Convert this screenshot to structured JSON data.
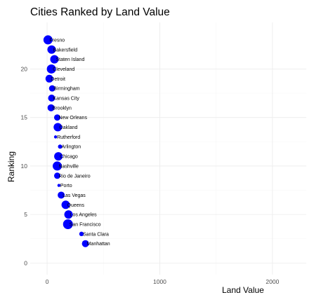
{
  "chart_data": {
    "type": "scatter",
    "title": "Cities Ranked by Land Value",
    "xlabel": "Land Value",
    "ylabel": "Ranking",
    "xlim": [
      -150,
      2300
    ],
    "ylim": [
      -1.2,
      24.8
    ],
    "x_ticks": [
      0,
      1000,
      2000
    ],
    "y_ticks": [
      0,
      5,
      10,
      15,
      20
    ],
    "grid": true,
    "legend": "none",
    "point_color": "#0000ff",
    "points": [
      {
        "label": "Fresno",
        "x": 8,
        "rank": 23,
        "size": 6.5
      },
      {
        "label": "Bakersfield",
        "x": 40,
        "rank": 22,
        "size": 6
      },
      {
        "label": "Staten Island",
        "x": 65,
        "rank": 21,
        "size": 6
      },
      {
        "label": "Cleveland",
        "x": 38,
        "rank": 20,
        "size": 6.5
      },
      {
        "label": "Detroit",
        "x": 20,
        "rank": 19,
        "size": 5.5
      },
      {
        "label": "Birmingham",
        "x": 45,
        "rank": 18,
        "size": 4.5
      },
      {
        "label": "Kansas City",
        "x": 40,
        "rank": 17,
        "size": 5
      },
      {
        "label": "Brooklyn",
        "x": 35,
        "rank": 16,
        "size": 5
      },
      {
        "label": "New Orleans",
        "x": 90,
        "rank": 15,
        "size": 4.5
      },
      {
        "label": "Oakland",
        "x": 95,
        "rank": 14,
        "size": 6
      },
      {
        "label": "Rutherford",
        "x": 75,
        "rank": 13,
        "size": 2.2
      },
      {
        "label": "Arlington",
        "x": 115,
        "rank": 12,
        "size": 3
      },
      {
        "label": "Chicago",
        "x": 100,
        "rank": 11,
        "size": 6
      },
      {
        "label": "Nashville",
        "x": 90,
        "rank": 10,
        "size": 6.5
      },
      {
        "label": "Rio de Janeiro",
        "x": 90,
        "rank": 9,
        "size": 4.5
      },
      {
        "label": "Porto",
        "x": 105,
        "rank": 8,
        "size": 2.2
      },
      {
        "label": "Las Vegas",
        "x": 125,
        "rank": 7,
        "size": 5
      },
      {
        "label": "Queens",
        "x": 165,
        "rank": 6,
        "size": 6
      },
      {
        "label": "Los Angeles",
        "x": 190,
        "rank": 5,
        "size": 6
      },
      {
        "label": "San Francisco",
        "x": 185,
        "rank": 4,
        "size": 7
      },
      {
        "label": "Santa Clara",
        "x": 305,
        "rank": 3,
        "size": 3.2
      },
      {
        "label": "Manhattan",
        "x": 340,
        "rank": 2,
        "size": 5
      }
    ]
  }
}
